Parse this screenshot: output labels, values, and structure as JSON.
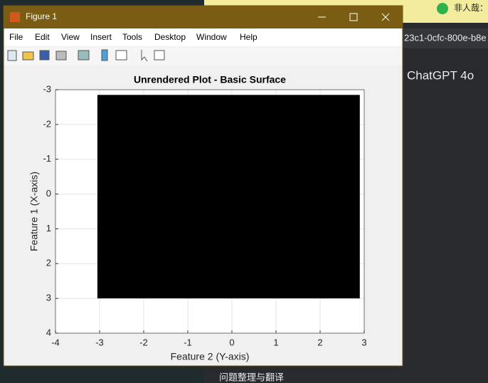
{
  "window": {
    "title": "Figure 1",
    "menus": [
      "File",
      "Edit",
      "View",
      "Insert",
      "Tools",
      "Desktop",
      "Window",
      "Help"
    ]
  },
  "background": {
    "url_fragment": "23c1-0cfc-800e-b8e",
    "model": "ChatGPT 4o",
    "tab_text": "非人哉：",
    "sidebar_item": "问题整理与翻译"
  },
  "chart_data": {
    "type": "surface",
    "title": "Unrendered Plot - Basic Surface",
    "xlabel": "Feature 2 (Y-axis)",
    "ylabel": "Feature 1 (X-axis)",
    "x_extent": [
      -3.05,
      2.9
    ],
    "y_extent": [
      -2.85,
      3
    ],
    "color": "#000000",
    "xlim": [
      -4,
      3
    ],
    "ylim": [
      -3,
      4
    ],
    "xticks": [
      -4,
      -3,
      -2,
      -1,
      0,
      1,
      2,
      3
    ],
    "yticks": [
      -3,
      -2,
      -1,
      0,
      1,
      2,
      3,
      4
    ],
    "y_reversed": true,
    "grid": true
  }
}
